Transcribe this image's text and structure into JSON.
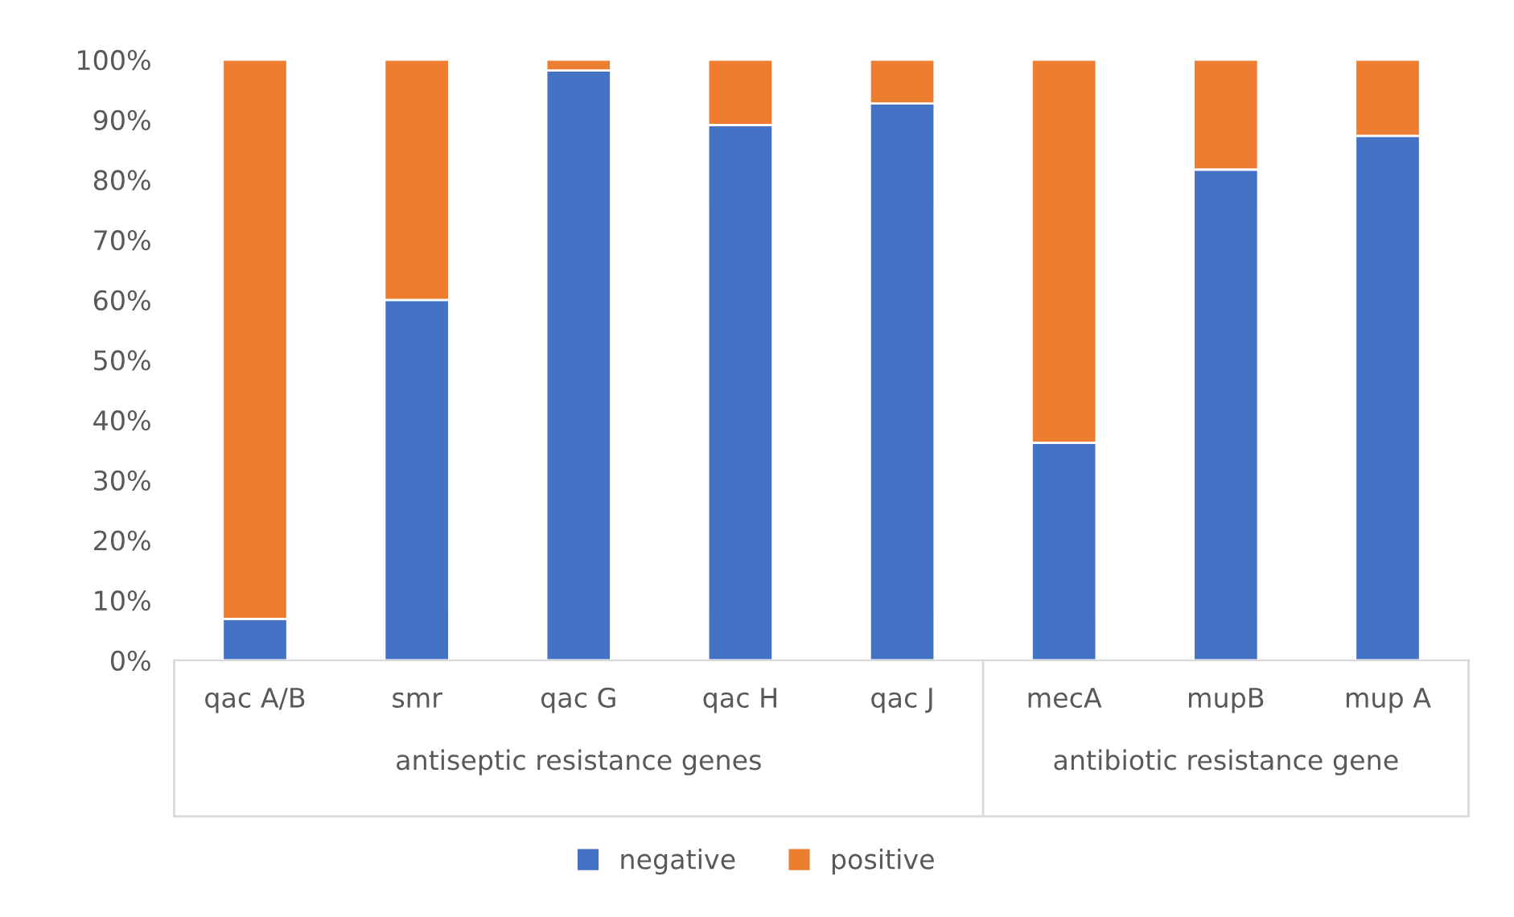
{
  "chart_data": {
    "type": "bar",
    "stacked": true,
    "categories": [
      "qac A/B",
      "smr",
      "qac G",
      "qac H",
      "qac J",
      "mecA",
      "mupB",
      "mup A"
    ],
    "series": [
      {
        "name": "negative",
        "color": "#4472c4",
        "values": [
          6.9,
          60,
          98.2,
          89.1,
          92.7,
          36.2,
          81.7,
          87.3
        ]
      },
      {
        "name": "positive",
        "color": "#ed7d31",
        "values": [
          93.1,
          40,
          1.8,
          10.9,
          7.3,
          63.8,
          18.3,
          12.7
        ]
      }
    ],
    "ylim": [
      0,
      100
    ],
    "yticks": [
      {
        "value": 0,
        "label": "0%"
      },
      {
        "value": 10,
        "label": "10%"
      },
      {
        "value": 20,
        "label": "20%"
      },
      {
        "value": 30,
        "label": "30%"
      },
      {
        "value": 40,
        "label": "40%"
      },
      {
        "value": 50,
        "label": "50%"
      },
      {
        "value": 60,
        "label": "60%"
      },
      {
        "value": 70,
        "label": "70%"
      },
      {
        "value": 80,
        "label": "80%"
      },
      {
        "value": 90,
        "label": "90%"
      },
      {
        "value": 100,
        "label": "100%"
      }
    ],
    "annotations": [
      "antiseptic resistance genes",
      "antibiotic resistance gene"
    ],
    "grid": false,
    "legend": "bottom"
  }
}
